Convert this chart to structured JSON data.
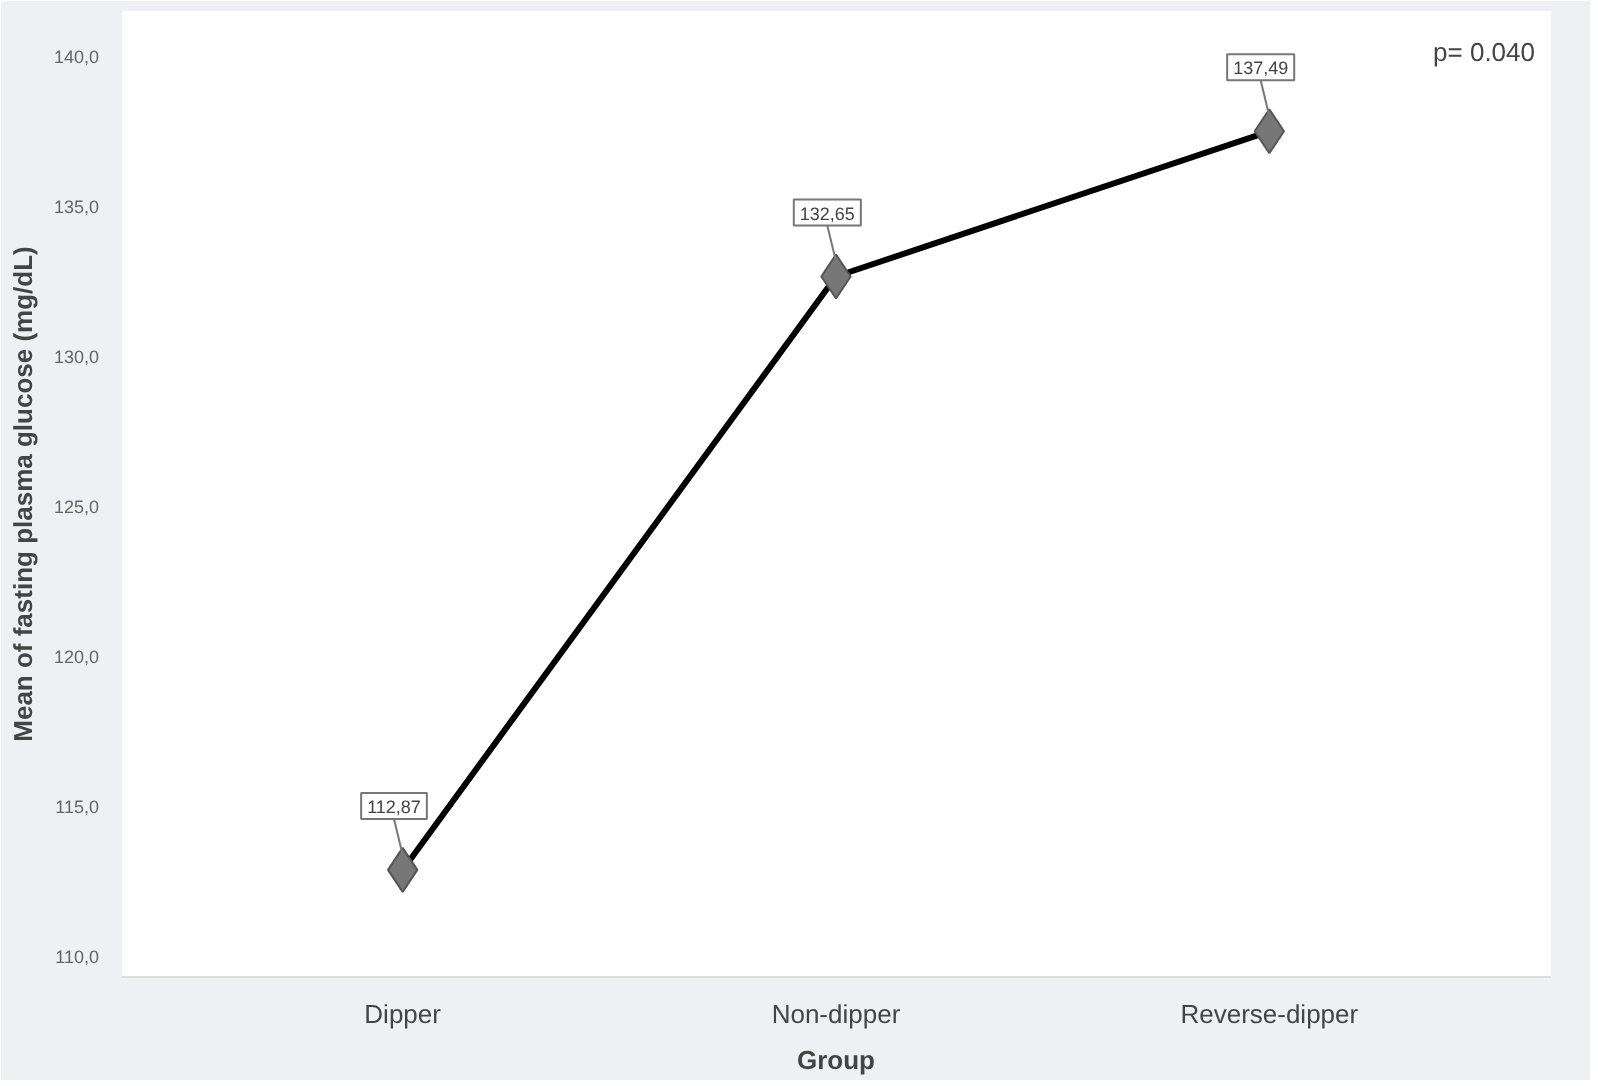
{
  "chart_data": {
    "type": "line",
    "xlabel": "Group",
    "ylabel": "Mean of fasting plasma glucose (mg/dL)",
    "categories": [
      "Dipper",
      "Non-dipper",
      "Reverse-dipper"
    ],
    "series": [
      {
        "color": "#000000",
        "values": [
          112.87,
          132.65,
          137.49
        ],
        "value_labels": [
          "112,87",
          "132,65",
          "137,49"
        ]
      }
    ],
    "ylim": [
      109.3,
      141.5
    ],
    "yticks": [
      {
        "value": 110,
        "label": "110,0"
      },
      {
        "value": 115,
        "label": "115,0"
      },
      {
        "value": 120,
        "label": "120,0"
      },
      {
        "value": 125,
        "label": "125,0"
      },
      {
        "value": 130,
        "label": "130,0"
      },
      {
        "value": 135,
        "label": "135,0"
      },
      {
        "value": 140,
        "label": "140,0"
      }
    ],
    "marker": "diamond",
    "line_style": "solid",
    "annotations": [
      "p= 0.040"
    ]
  }
}
